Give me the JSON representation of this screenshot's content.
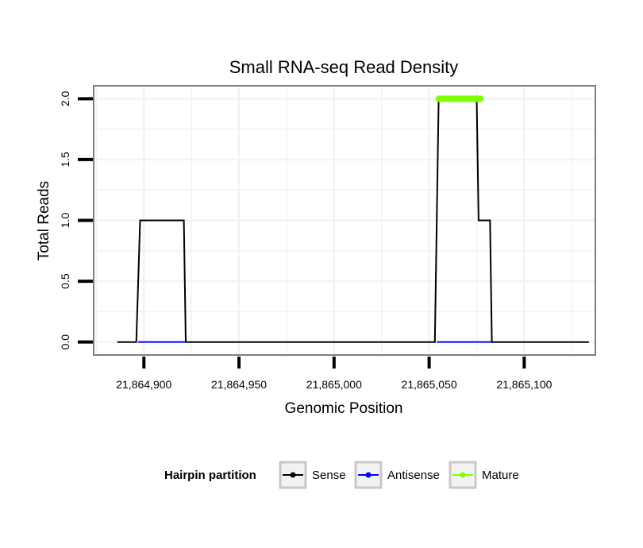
{
  "chart_data": {
    "type": "line",
    "title": "Small RNA-seq Read Density",
    "xlabel": "Genomic Position",
    "ylabel": "Total Reads",
    "xlim": [
      21864874,
      21865137
    ],
    "ylim": [
      -0.1,
      2.1
    ],
    "x_ticks": [
      21864900,
      21864950,
      21865000,
      21865050,
      21865100
    ],
    "x_tick_labels": [
      "21,864,900",
      "21,864,950",
      "21,865,000",
      "21,865,050",
      "21,865,100"
    ],
    "y_ticks": [
      0.0,
      0.5,
      1.0,
      1.5,
      2.0
    ],
    "y_tick_labels": [
      "0.0",
      "0.5",
      "1.0",
      "1.5",
      "2.0"
    ],
    "grid": true,
    "legend": {
      "title": "Hairpin partition",
      "position": "bottom",
      "entries": [
        {
          "label": "Sense",
          "color": "#000000"
        },
        {
          "label": "Antisense",
          "color": "#0000ff"
        },
        {
          "label": "Mature",
          "color": "#7fff00"
        }
      ]
    },
    "series": [
      {
        "name": "Sense",
        "color": "#000000",
        "x": [
          21864886,
          21864896,
          21864898,
          21864921,
          21864922,
          21865053,
          21865055,
          21865075,
          21865076,
          21865082,
          21865083,
          21865134
        ],
        "y": [
          0,
          0,
          1,
          1,
          0,
          0,
          2,
          2,
          1,
          1,
          0,
          0
        ]
      },
      {
        "name": "Antisense",
        "color": "#0000ff",
        "x": [
          21864897,
          21864922,
          21865054,
          21865083
        ],
        "y": [
          0,
          0,
          0,
          0
        ],
        "segments": [
          [
            0,
            1
          ],
          [
            2,
            3
          ]
        ]
      },
      {
        "name": "Mature",
        "color": "#7fff00",
        "x": [
          21865055,
          21865077
        ],
        "y": [
          2.0,
          2.0
        ]
      }
    ]
  }
}
